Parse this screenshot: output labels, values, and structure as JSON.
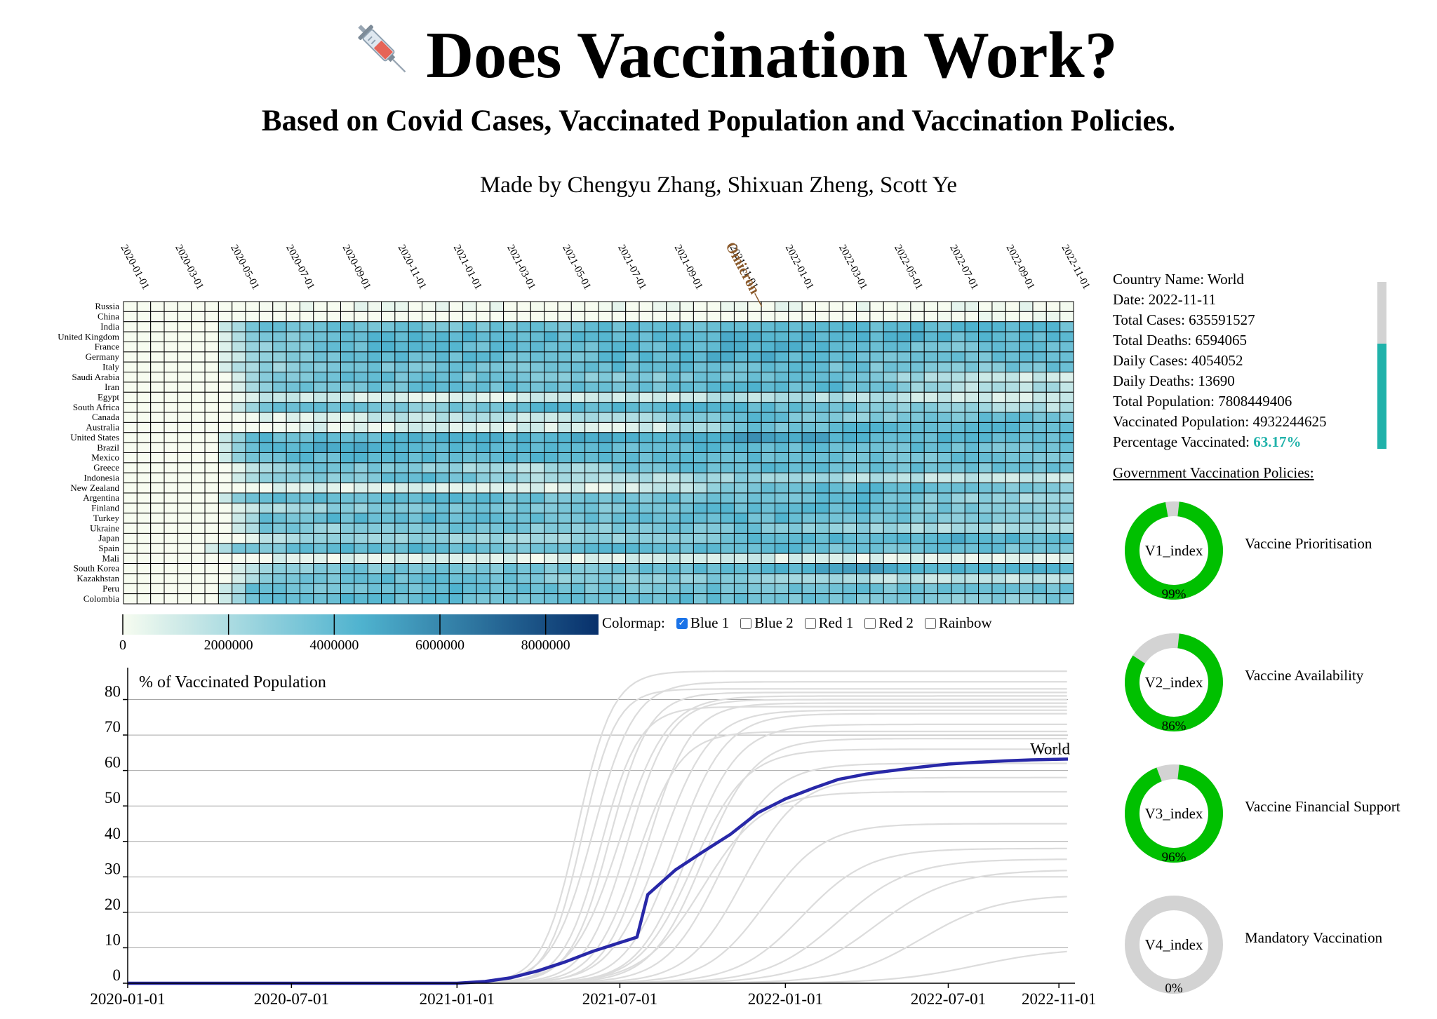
{
  "header": {
    "title": "Does Vaccination Work?",
    "emoji_icon": "syringe-icon",
    "subtitle": "Based on Covid Cases, Vaccinated Population and Vaccination Policies.",
    "credits": "Made by Chengyu Zhang, Shixuan Zheng, Scott Ye"
  },
  "colormap": {
    "label": "Colormap:",
    "options": [
      {
        "label": "Blue 1",
        "checked": true
      },
      {
        "label": "Blue 2",
        "checked": false
      },
      {
        "label": "Red 1",
        "checked": false
      },
      {
        "label": "Red 2",
        "checked": false
      },
      {
        "label": "Rainbow",
        "checked": false
      }
    ]
  },
  "info": {
    "country": "Country Name: World",
    "date": "Date: 2022-11-11",
    "total_cases": "Total Cases: 635591527",
    "total_deaths": "Total Deaths: 6594065",
    "daily_cases": "Daily Cases: 4054052",
    "daily_deaths": "Daily Deaths: 13690",
    "total_population": "Total Population: 7808449406",
    "vaccinated_population": "Vaccinated Population: 4932244625",
    "percentage_label": "Percentage Vaccinated: ",
    "percentage_value": "63.17%",
    "percentage_fraction": 0.6317,
    "accent_color": "#20b2aa"
  },
  "policies": {
    "title": "Government Vaccination Policies:",
    "items": [
      {
        "index": "V1_index",
        "name": "Vaccine Prioritisation",
        "value": 99,
        "label": "99%"
      },
      {
        "index": "V2_index",
        "name": "Vaccine Availability",
        "value": 86,
        "label": "86%"
      },
      {
        "index": "V3_index",
        "name": "Vaccine Financial Support",
        "value": 96,
        "label": "96%"
      },
      {
        "index": "V4_index",
        "name": "Mandatory Vaccination",
        "value": 0,
        "label": "0%"
      }
    ],
    "fill_color": "#00c000",
    "track_color": "#d3d3d3"
  },
  "chart_data": [
    {
      "type": "heatmap",
      "title": "",
      "rows": [
        "Russia",
        "China",
        "India",
        "United Kingdom",
        "France",
        "Germany",
        "Italy",
        "Saudi Arabia",
        "Iran",
        "Egypt",
        "South Africa",
        "Canada",
        "Australia",
        "United States",
        "Brazil",
        "Mexico",
        "Greece",
        "Indonesia",
        "New Zealand",
        "Argentina",
        "Finland",
        "Turkey",
        "Ukraine",
        "Japan",
        "Spain",
        "Mali",
        "South Korea",
        "Kazakhstan",
        "Peru",
        "Colombia"
      ],
      "x_tick_labels": [
        "2020-01-01",
        "2020-03-01",
        "2020-05-01",
        "2020-07-01",
        "2020-09-01",
        "2020-11-01",
        "2021-01-01",
        "2021-03-01",
        "2021-05-01",
        "2021-07-01",
        "2021-09-01",
        "2021-11-01",
        "2022-01-01",
        "2022-03-01",
        "2022-05-01",
        "2022-07-01",
        "2022-09-01",
        "2022-11-01"
      ],
      "x_range": [
        "2020-01-01",
        "2022-11-11"
      ],
      "period_count": 70,
      "annotation": {
        "label": "Omicron",
        "date": "2021-11-24"
      },
      "color_scale": {
        "domain": [
          0,
          9000000
        ],
        "colors": [
          "#f7fcf0",
          "#4fb3cf",
          "#08306b"
        ],
        "ticks": [
          "0",
          "2000000",
          "4000000",
          "6000000",
          "8000000"
        ],
        "tick_values": [
          0,
          2000000,
          4000000,
          6000000,
          8000000
        ]
      },
      "levels": [
        {
          "row": "Russia",
          "base": [
            0,
            0,
            0,
            0,
            0,
            0,
            0,
            0,
            0,
            0
          ],
          "ramp_start": 9
        },
        {
          "row": "China",
          "base": [
            0,
            0,
            0,
            0,
            0,
            0,
            0,
            0,
            0,
            0
          ],
          "ramp_start": 60
        },
        {
          "row": "India",
          "base": [
            0.3,
            0.4,
            0.45,
            0.4,
            0.4,
            0.45,
            0.45,
            0.45,
            0.45,
            0.45
          ],
          "ramp_start": 7
        },
        {
          "row": "United Kingdom",
          "base": [
            0.35,
            0.3,
            0.45,
            0.45,
            0.45,
            0.45,
            0.5,
            0.5,
            0.45,
            0.45
          ],
          "ramp_start": 7
        },
        {
          "row": "France",
          "base": [
            0.3,
            0.2,
            0.45,
            0.45,
            0.4,
            0.45,
            0.5,
            0.45,
            0.4,
            0.4
          ],
          "ramp_start": 7
        },
        {
          "row": "Germany",
          "base": [
            0.35,
            0.2,
            0.4,
            0.45,
            0.4,
            0.45,
            0.5,
            0.4,
            0.4,
            0.45
          ],
          "ramp_start": 7
        },
        {
          "row": "Italy",
          "base": [
            0.3,
            0.25,
            0.35,
            0.4,
            0.4,
            0.45,
            0.45,
            0.4,
            0.35,
            0.4
          ],
          "ramp_start": 7
        },
        {
          "row": "Saudi Arabia",
          "base": [
            0.3,
            0.35,
            0.4,
            0.4,
            0.35,
            0.35,
            0.4,
            0.4,
            0.15,
            0.1
          ],
          "ramp_start": 8
        },
        {
          "row": "Iran",
          "base": [
            0.25,
            0.3,
            0.4,
            0.45,
            0.4,
            0.4,
            0.45,
            0.45,
            0.2,
            0.2
          ],
          "ramp_start": 8
        },
        {
          "row": "Egypt",
          "base": [
            0.1,
            0.15,
            0.1,
            0.05,
            0.1,
            0.1,
            0.2,
            0.2,
            0.1,
            0.1
          ],
          "ramp_start": 8
        },
        {
          "row": "South Africa",
          "base": [
            0.2,
            0.4,
            0.4,
            0.35,
            0.45,
            0.45,
            0.45,
            0.4,
            0.25,
            0.2
          ],
          "ramp_start": 8
        },
        {
          "row": "Canada",
          "base": [
            0.15,
            0.05,
            0.1,
            0.2,
            0.15,
            0.25,
            0.45,
            0.3,
            0.4,
            0.4
          ],
          "ramp_start": 8
        },
        {
          "row": "Australia",
          "base": [
            0.05,
            0.05,
            0.05,
            0.1,
            0.1,
            0.1,
            0.4,
            0.45,
            0.45,
            0.45
          ],
          "ramp_start": 8
        },
        {
          "row": "United States",
          "base": [
            0.35,
            0.45,
            0.45,
            0.5,
            0.5,
            0.5,
            0.6,
            0.5,
            0.45,
            0.45
          ],
          "ramp_start": 7
        },
        {
          "row": "Brazil",
          "base": [
            0.35,
            0.45,
            0.5,
            0.45,
            0.45,
            0.45,
            0.45,
            0.45,
            0.4,
            0.4
          ],
          "ramp_start": 7
        },
        {
          "row": "Mexico",
          "base": [
            0.35,
            0.4,
            0.45,
            0.45,
            0.45,
            0.45,
            0.45,
            0.4,
            0.4,
            0.4
          ],
          "ramp_start": 7
        },
        {
          "row": "Greece",
          "base": [
            0.15,
            0.15,
            0.4,
            0.3,
            0.2,
            0.4,
            0.45,
            0.4,
            0.4,
            0.4
          ],
          "ramp_start": 8
        },
        {
          "row": "Indonesia",
          "base": [
            0.2,
            0.3,
            0.35,
            0.45,
            0.2,
            0.2,
            0.3,
            0.2,
            0.15,
            0.15
          ],
          "ramp_start": 8
        },
        {
          "row": "New Zealand",
          "base": [
            0.05,
            0.05,
            0.05,
            0.05,
            0.05,
            0.1,
            0.4,
            0.45,
            0.4,
            0.35
          ],
          "ramp_start": 9
        },
        {
          "row": "Argentina",
          "base": [
            0.35,
            0.45,
            0.45,
            0.45,
            0.4,
            0.4,
            0.4,
            0.45,
            0.3,
            0.25
          ],
          "ramp_start": 7
        },
        {
          "row": "Finland",
          "base": [
            0.15,
            0.2,
            0.3,
            0.4,
            0.35,
            0.4,
            0.45,
            0.45,
            0.35,
            0.35
          ],
          "ramp_start": 8
        },
        {
          "row": "Turkey",
          "base": [
            0.35,
            0.4,
            0.45,
            0.45,
            0.4,
            0.4,
            0.45,
            0.4,
            0.35,
            0.3
          ],
          "ramp_start": 8
        },
        {
          "row": "Ukraine",
          "base": [
            0.3,
            0.4,
            0.3,
            0.4,
            0.35,
            0.35,
            0.4,
            0.3,
            0.2,
            0.25
          ],
          "ramp_start": 8
        },
        {
          "row": "Japan",
          "base": [
            0.15,
            0.2,
            0.25,
            0.3,
            0.25,
            0.3,
            0.45,
            0.45,
            0.5,
            0.45
          ],
          "ramp_start": 9
        },
        {
          "row": "Spain",
          "base": [
            0.35,
            0.35,
            0.45,
            0.45,
            0.4,
            0.45,
            0.45,
            0.4,
            0.4,
            0.4
          ],
          "ramp_start": 6
        },
        {
          "row": "Mali",
          "base": [
            0.05,
            0.05,
            0.05,
            0.05,
            0.05,
            0.1,
            0.1,
            0.05,
            0.05,
            0.05
          ],
          "ramp_start": 9
        },
        {
          "row": "South Korea",
          "base": [
            0.2,
            0.3,
            0.35,
            0.4,
            0.35,
            0.4,
            0.45,
            0.55,
            0.5,
            0.45
          ],
          "ramp_start": 8
        },
        {
          "row": "Kazakhstan",
          "base": [
            0.1,
            0.3,
            0.4,
            0.45,
            0.35,
            0.3,
            0.35,
            0.2,
            0.15,
            0.15
          ],
          "ramp_start": 8
        },
        {
          "row": "Peru",
          "base": [
            0.35,
            0.4,
            0.4,
            0.45,
            0.4,
            0.4,
            0.4,
            0.4,
            0.4,
            0.4
          ],
          "ramp_start": 7
        },
        {
          "row": "Colombia",
          "base": [
            0.3,
            0.4,
            0.45,
            0.45,
            0.4,
            0.45,
            0.4,
            0.4,
            0.35,
            0.35
          ],
          "ramp_start": 7
        }
      ]
    },
    {
      "type": "line",
      "title": "% of Vaccinated Population",
      "xlabel": "",
      "ylabel": "",
      "x_ticks": [
        "2020-01-01",
        "2020-07-01",
        "2021-01-01",
        "2021-07-01",
        "2022-01-01",
        "2022-07-01",
        "2022-11-01"
      ],
      "y_ticks": [
        0,
        10,
        20,
        30,
        40,
        50,
        60,
        70,
        80
      ],
      "xlim": [
        "2020-01-01",
        "2022-11-11"
      ],
      "ylim": [
        0,
        89
      ],
      "grid": true,
      "highlight": {
        "name": "World",
        "color": "#2828a8",
        "points": [
          [
            "2020-01-01",
            0
          ],
          [
            "2021-01-01",
            0
          ],
          [
            "2021-02-01",
            0.5
          ],
          [
            "2021-03-01",
            1.5
          ],
          [
            "2021-04-01",
            3.5
          ],
          [
            "2021-05-01",
            6
          ],
          [
            "2021-06-01",
            9
          ],
          [
            "2021-07-20",
            13
          ],
          [
            "2021-08-01",
            25
          ],
          [
            "2021-09-01",
            32
          ],
          [
            "2021-10-01",
            37
          ],
          [
            "2021-11-01",
            42
          ],
          [
            "2021-12-01",
            48
          ],
          [
            "2022-01-01",
            52
          ],
          [
            "2022-02-01",
            55
          ],
          [
            "2022-03-01",
            57.5
          ],
          [
            "2022-04-01",
            59
          ],
          [
            "2022-05-01",
            60
          ],
          [
            "2022-06-01",
            61
          ],
          [
            "2022-07-01",
            61.8
          ],
          [
            "2022-08-01",
            62.3
          ],
          [
            "2022-09-01",
            62.7
          ],
          [
            "2022-10-01",
            63
          ],
          [
            "2022-11-11",
            63.2
          ]
        ]
      },
      "background_series": {
        "color": "#dcdcdc",
        "curves": [
          {
            "start": "2021-01-10",
            "mid": "2021-05-15",
            "final": 88
          },
          {
            "start": "2021-01-05",
            "mid": "2021-06-01",
            "final": 85
          },
          {
            "start": "2021-01-20",
            "mid": "2021-05-20",
            "final": 83
          },
          {
            "start": "2021-02-01",
            "mid": "2021-06-20",
            "final": 82
          },
          {
            "start": "2021-01-15",
            "mid": "2021-07-01",
            "final": 81
          },
          {
            "start": "2021-02-10",
            "mid": "2021-07-10",
            "final": 80
          },
          {
            "start": "2021-03-01",
            "mid": "2021-08-01",
            "final": 79
          },
          {
            "start": "2021-01-25",
            "mid": "2021-06-10",
            "final": 78
          },
          {
            "start": "2021-02-20",
            "mid": "2021-08-15",
            "final": 77
          },
          {
            "start": "2021-03-10",
            "mid": "2021-09-01",
            "final": 76
          },
          {
            "start": "2021-03-20",
            "mid": "2021-09-15",
            "final": 73
          },
          {
            "start": "2021-02-15",
            "mid": "2021-07-20",
            "final": 71
          },
          {
            "start": "2021-04-01",
            "mid": "2021-10-01",
            "final": 69
          },
          {
            "start": "2021-03-15",
            "mid": "2021-09-20",
            "final": 66
          },
          {
            "start": "2021-04-10",
            "mid": "2021-10-20",
            "final": 62
          },
          {
            "start": "2021-05-01",
            "mid": "2021-11-15",
            "final": 58
          },
          {
            "start": "2021-03-01",
            "mid": "2021-10-01",
            "final": 54
          },
          {
            "start": "2021-05-15",
            "mid": "2021-12-10",
            "final": 45
          },
          {
            "start": "2021-06-01",
            "mid": "2022-01-20",
            "final": 38
          },
          {
            "start": "2021-06-20",
            "mid": "2022-03-01",
            "final": 35
          },
          {
            "start": "2021-07-10",
            "mid": "2022-04-10",
            "final": 32
          },
          {
            "start": "2021-09-01",
            "mid": "2022-06-01",
            "final": 25
          },
          {
            "start": "2021-10-01",
            "mid": "2022-08-01",
            "final": 10
          }
        ]
      }
    }
  ]
}
